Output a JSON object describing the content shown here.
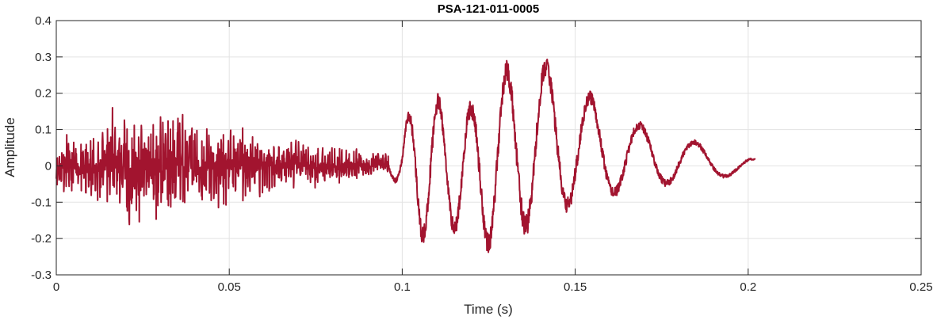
{
  "chart_data": {
    "type": "line",
    "title": "PSA-121-011-0005",
    "xlabel": "Time (s)",
    "ylabel": "Amplitude",
    "xlim": [
      0,
      0.25
    ],
    "ylim": [
      -0.3,
      0.4
    ],
    "x_ticks": [
      0,
      0.05,
      0.1,
      0.15,
      0.2,
      0.25
    ],
    "x_tick_labels": [
      "0",
      "0.05",
      "0.1",
      "0.15",
      "0.2",
      "0.25"
    ],
    "y_ticks": [
      -0.3,
      -0.2,
      -0.1,
      0,
      0.1,
      0.2,
      0.3,
      0.4
    ],
    "y_tick_labels": [
      "-0.3",
      "-0.2",
      "-0.1",
      "0",
      "0.1",
      "0.2",
      "0.3",
      "0.4"
    ],
    "grid": true,
    "series_color": "#A2142F",
    "series": [
      {
        "name": "",
        "x": [
          0.0,
          0.003,
          0.006,
          0.009,
          0.012,
          0.015,
          0.02,
          0.025,
          0.027,
          0.035,
          0.04,
          0.045,
          0.05,
          0.055,
          0.06,
          0.07,
          0.08,
          0.09,
          0.095,
          0.1,
          0.101,
          0.105,
          0.11,
          0.113,
          0.12,
          0.125,
          0.13,
          0.135,
          0.14,
          0.145,
          0.15,
          0.155,
          0.16,
          0.17,
          0.18,
          0.19,
          0.2,
          0.202
        ],
        "upper": [
          0.05,
          0.1,
          0.06,
          0.09,
          0.12,
          0.17,
          0.14,
          0.16,
          0.15,
          0.17,
          0.13,
          0.12,
          0.11,
          0.12,
          0.1,
          0.07,
          0.06,
          0.05,
          0.04,
          0.08,
          0.14,
          0.19,
          0.2,
          0.19,
          0.18,
          0.25,
          0.29,
          0.31,
          0.31,
          0.28,
          0.24,
          0.2,
          0.15,
          0.12,
          0.09,
          0.05,
          0.03,
          0.02
        ],
        "lower": [
          -0.06,
          -0.09,
          -0.08,
          -0.11,
          -0.14,
          -0.13,
          -0.16,
          -0.18,
          -0.17,
          -0.15,
          -0.14,
          -0.13,
          -0.12,
          -0.1,
          -0.09,
          -0.07,
          -0.06,
          -0.04,
          -0.03,
          -0.06,
          -0.1,
          -0.22,
          -0.2,
          -0.18,
          -0.23,
          -0.24,
          -0.23,
          -0.2,
          -0.17,
          -0.15,
          -0.12,
          -0.11,
          -0.09,
          -0.07,
          -0.05,
          -0.04,
          -0.02,
          -0.01
        ]
      }
    ]
  }
}
